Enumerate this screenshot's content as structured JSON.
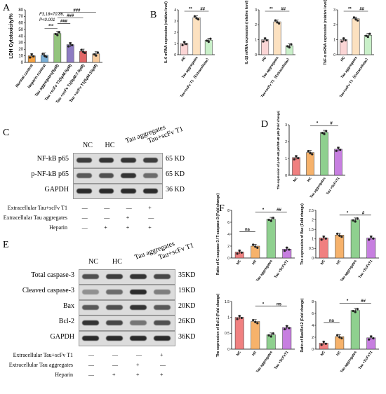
{
  "panel_labels": {
    "A": "A",
    "B": "B",
    "C": "C",
    "D": "D",
    "E": "E",
    "F": "F"
  },
  "panelA": {
    "stat_line1": "F3,18=70.86,",
    "stat_line2": "P<0.001",
    "significance": [
      "***",
      "###",
      "###",
      "###"
    ]
  },
  "colors": {
    "orange": "#f5a142",
    "blue": "#7ab0d8",
    "green": "#93c47d",
    "purple": "#8e7cc3",
    "red": "#e06666",
    "peach": "#f9cb9c",
    "nc": "#f4a6a6",
    "hc": "#f6b26b",
    "tau": "#b6e3a8",
    "tscfv": "#d49ee8",
    "b_hc": "#fbd5d5",
    "b_tau": "#fce1c0",
    "b_tscfv": "#c9f0c9",
    "d_nc": "#f08080",
    "d_hc": "#f6b26b",
    "d_tau": "#8fd08f",
    "d_tscfv": "#c77fe0"
  },
  "chart_data": [
    {
      "type": "bar",
      "id": "A",
      "categories": [
        "Normal control",
        "Heparin control",
        "Tau aggregates(5μM)",
        "Tau +scFv T1(5μM:5μM)",
        "Tau +scFv T1(5μM:7.5μM)",
        "Tau +scFv T1(5μM:10μM)"
      ],
      "values": [
        10,
        11,
        44,
        27,
        17,
        13
      ],
      "ylabel": "LDH Cytotoxicity/%",
      "ylim": [
        0,
        80
      ],
      "yticks": [
        0,
        10,
        20,
        30,
        40,
        50,
        60,
        70,
        80
      ]
    },
    {
      "type": "bar",
      "id": "B1",
      "categories": [
        "HC",
        "Tau aggregates",
        "Tau+scFv T1（Extracellular）"
      ],
      "values": [
        1.0,
        3.3,
        1.3
      ],
      "ylabel": "IL-6 mRNA expression (relative level)",
      "ylim": [
        0,
        4
      ],
      "yticks": [
        0,
        1,
        2,
        3,
        4
      ],
      "significance": [
        "**",
        "##"
      ]
    },
    {
      "type": "bar",
      "id": "B2",
      "categories": [
        "HC",
        "Tau aggregates",
        "Tau+scFv T1（Extracellular）"
      ],
      "values": [
        1.0,
        2.2,
        0.6
      ],
      "ylabel": "IL-1β mRNA expression (relative level)",
      "ylim": [
        0,
        3
      ],
      "yticks": [
        0,
        1,
        2,
        3
      ],
      "significance": [
        "**",
        "##"
      ]
    },
    {
      "type": "bar",
      "id": "B3",
      "categories": [
        "HC",
        "Tau aggregates",
        "Tau+scFv T1（Extracellular）"
      ],
      "values": [
        1.0,
        2.4,
        1.3
      ],
      "ylabel": "TNF-α mRNA expression (relative level)",
      "ylim": [
        0,
        3
      ],
      "yticks": [
        0,
        1,
        2,
        3
      ],
      "significance": [
        "**",
        "##"
      ]
    },
    {
      "type": "bar",
      "id": "D",
      "categories": [
        "NC",
        "HC",
        "Tau aggregates",
        "Tau +ScFvT1"
      ],
      "values": [
        1.05,
        1.35,
        2.55,
        1.55
      ],
      "ylabel": "The expression of p-NF-κB p65/NF-κB p65 (Fold change)",
      "ylim": [
        0,
        3
      ],
      "yticks": [
        0,
        1,
        2,
        3
      ],
      "significance": [
        "*",
        "#"
      ]
    },
    {
      "type": "bar",
      "id": "F1",
      "categories": [
        "NC",
        "HC",
        "Tau aggregates",
        "Tau +ScFvT1"
      ],
      "values": [
        1.0,
        2.0,
        6.5,
        1.5
      ],
      "ylabel": "Ratio of C-caspase-3 / T-caspase-3 (Fold change)",
      "ylim": [
        0,
        8
      ],
      "yticks": [
        0,
        2,
        4,
        6,
        8
      ],
      "significance": [
        "ns",
        "*",
        "##"
      ]
    },
    {
      "type": "bar",
      "id": "F2",
      "categories": [
        "NC",
        "HC",
        "Tau aggregates",
        "Tau +ScFvT1"
      ],
      "values": [
        1.05,
        1.2,
        2.0,
        1.05
      ],
      "ylabel": "The expression of Bax (Fold change)",
      "ylim": [
        0,
        2.5
      ],
      "yticks": [
        0,
        0.5,
        1.0,
        1.5,
        2.0,
        2.5
      ],
      "significance": [
        "*",
        "#"
      ]
    },
    {
      "type": "bar",
      "id": "F3",
      "categories": [
        "NC",
        "HC",
        "Tau aggregates",
        "Tau +ScFvT1"
      ],
      "values": [
        1.0,
        0.87,
        0.45,
        0.68
      ],
      "ylabel": "The expression of Bcl-2 (Fold change)",
      "ylim": [
        0,
        1.5
      ],
      "yticks": [
        0,
        0.5,
        1.0,
        1.5
      ],
      "significance": [
        "*",
        "ns"
      ]
    },
    {
      "type": "bar",
      "id": "F4",
      "categories": [
        "NC",
        "HC",
        "Tau aggregates",
        "Tau +ScFvT1"
      ],
      "values": [
        1.0,
        2.1,
        6.5,
        1.9
      ],
      "ylabel": "Ratio of Bax/Bcl-2 (Fold change)",
      "ylim": [
        0,
        8
      ],
      "yticks": [
        0,
        2,
        4,
        6,
        8
      ],
      "significance": [
        "ns",
        "*",
        "##"
      ]
    }
  ],
  "blotC": {
    "lanes": [
      "NC",
      "HC",
      "Tau aggregates",
      "Tau+scFv T1"
    ],
    "rows": [
      "NF-kB p65",
      "p-NF-kB p65",
      "GAPDH"
    ],
    "kd": [
      "65 KD",
      "65 KD",
      "36 KD"
    ],
    "treat_labels": [
      "Extracellular Tau+scFv T1",
      "Extracellular Tau aggregates",
      "Heparin"
    ],
    "treat_marks": [
      [
        "—",
        "—",
        "—",
        "+"
      ],
      [
        "—",
        "—",
        "+",
        "—"
      ],
      [
        "—",
        "+",
        "+",
        "+"
      ]
    ]
  },
  "blotE": {
    "lanes": [
      "NC",
      "HC",
      "Tau aggregates",
      "Tau+scFv T1"
    ],
    "rows": [
      "Total caspase-3",
      "Cleaved caspase-3",
      "Bax",
      "Bcl-2",
      "GAPDH"
    ],
    "kd": [
      "35KD",
      "19KD",
      "20KD",
      "26KD",
      "36KD"
    ],
    "treat_labels": [
      "Extracellular Tau+scFv T1",
      "Extracellular Tau aggregates",
      "Heparin"
    ],
    "treat_marks": [
      [
        "—",
        "—",
        "—",
        "+"
      ],
      [
        "—",
        "—",
        "+",
        "—"
      ],
      [
        "—",
        "+",
        "+",
        "+"
      ]
    ]
  }
}
